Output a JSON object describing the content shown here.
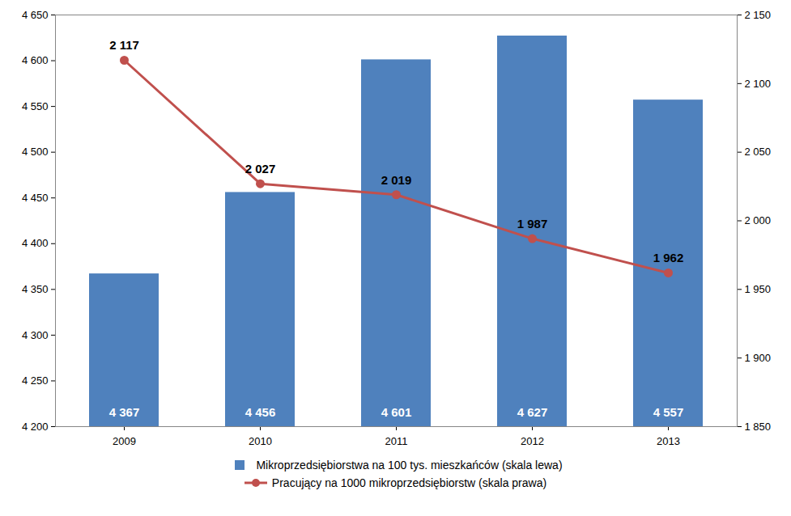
{
  "chart_data": {
    "type": "bar",
    "categories": [
      "2009",
      "2010",
      "2011",
      "2012",
      "2013"
    ],
    "series": [
      {
        "name": "Mikroprzedsiębiorstwa na 100 tys. mieszkańców (skala lewa)",
        "type": "bar",
        "color": "#4f81bd",
        "values": [
          4367,
          4456,
          4601,
          4627,
          4557
        ],
        "value_labels": [
          "4 367",
          "4 456",
          "4 601",
          "4 627",
          "4 557"
        ]
      },
      {
        "name": "Pracujący na 1000 mikroprzedsiębiorstw (skala prawa)",
        "type": "line",
        "axis": "y2",
        "color": "#c0504d",
        "marker": "circle",
        "values": [
          2117,
          2027,
          2019,
          1987,
          1962
        ],
        "value_labels": [
          "2 117",
          "2 027",
          "2 019",
          "1 987",
          "1 962"
        ]
      }
    ],
    "ylim": [
      4200,
      4650
    ],
    "yticks": [
      {
        "value": 4200,
        "label": "4 200"
      },
      {
        "value": 4250,
        "label": "4 250"
      },
      {
        "value": 4300,
        "label": "4 300"
      },
      {
        "value": 4350,
        "label": "4 350"
      },
      {
        "value": 4400,
        "label": "4 400"
      },
      {
        "value": 4450,
        "label": "4 450"
      },
      {
        "value": 4500,
        "label": "4 500"
      },
      {
        "value": 4550,
        "label": "4 550"
      },
      {
        "value": 4600,
        "label": "4 600"
      },
      {
        "value": 4650,
        "label": "4 650"
      }
    ],
    "y2lim": [
      1850,
      2150
    ],
    "y2ticks": [
      {
        "value": 1850,
        "label": "1 850"
      },
      {
        "value": 1900,
        "label": "1 900"
      },
      {
        "value": 1950,
        "label": "1 950"
      },
      {
        "value": 2000,
        "label": "2 000"
      },
      {
        "value": 2050,
        "label": "2 050"
      },
      {
        "value": 2100,
        "label": "2 100"
      },
      {
        "value": 2150,
        "label": "2 150"
      }
    ],
    "grid": false,
    "data_labels": true,
    "legend": "bottom"
  }
}
